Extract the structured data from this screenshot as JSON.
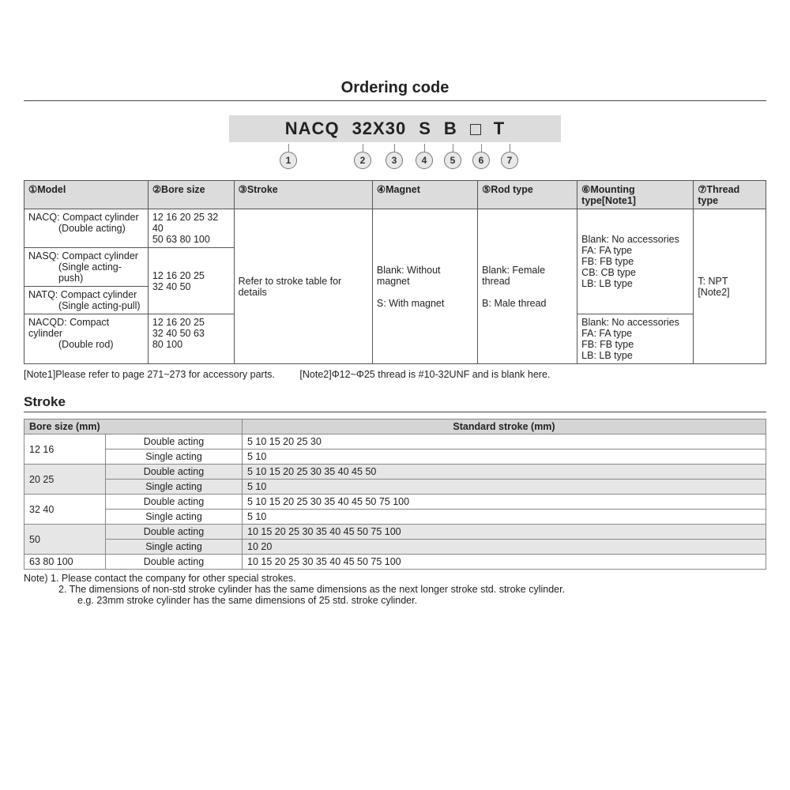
{
  "title": "Ordering code",
  "code_segments": [
    "NACQ",
    "32X30",
    "S",
    "B",
    "□",
    "T"
  ],
  "marker_labels": [
    "1",
    "2",
    "3",
    "4",
    "5",
    "6",
    "7"
  ],
  "main_table": {
    "headers": [
      "①Model",
      "②Bore size",
      "③Stroke",
      "④Magnet",
      "⑤Rod type",
      "⑥Mounting type[Note1]",
      "⑦Thread type"
    ],
    "model": [
      {
        "code": "NACQ:",
        "desc": "Compact cylinder",
        "sub": "(Double acting)"
      },
      {
        "code": "NASQ:",
        "desc": "Compact cylinder",
        "sub": "(Single acting-push)"
      },
      {
        "code": "NATQ:",
        "desc": "Compact cylinder",
        "sub": "(Single acting-pull)"
      },
      {
        "code": "NACQD:",
        "desc": "Compact cylinder",
        "sub": "(Double rod)"
      }
    ],
    "bore": [
      "12 16 20 25 32 40\n50 63 80 100",
      "12 16 20 25\n32 40 50",
      "12 16 20 25\n32 40 50 63\n80 100"
    ],
    "stroke": "Refer to stroke table for details",
    "magnet": "Blank: Without magnet\n\nS: With magnet",
    "rod": "Blank: Female thread\n\nB: Male thread",
    "mounting_a": "Blank: No accessories\nFA: FA type\nFB: FB type\nCB: CB type\nLB: LB type",
    "mounting_b": "Blank: No accessories\nFA: FA type\nFB: FB type\nLB: LB type",
    "thread": "T: NPT [Note2]"
  },
  "note1": "[Note1]Please refer to page 271~273 for accessory parts.",
  "note2": "[Note2]Φ12~Φ25 thread is  #10-32UNF and is blank here.",
  "stroke_section_title": "Stroke",
  "stroke_headers": [
    "Bore size (mm)",
    "Standard stroke (mm)"
  ],
  "stroke_rows": [
    {
      "bore": "12  16",
      "type": "Double acting",
      "strokes": "5  10  15  20  25  30",
      "alt": false
    },
    {
      "bore": "",
      "type": "Single acting",
      "strokes": "5  10",
      "alt": false,
      "merge": true
    },
    {
      "bore": "20  25",
      "type": "Double acting",
      "strokes": "5  10  15  20  25  30  35  40  45  50",
      "alt": true
    },
    {
      "bore": "",
      "type": "Single acting",
      "strokes": "5  10",
      "alt": true,
      "merge": true
    },
    {
      "bore": "32  40",
      "type": "Double acting",
      "strokes": "5  10  15  20  25  30  35  40  45  50  75  100",
      "alt": false
    },
    {
      "bore": "",
      "type": "Single acting",
      "strokes": "5  10",
      "alt": false,
      "merge": true
    },
    {
      "bore": "50",
      "type": "Double acting",
      "strokes": "10  15  20  25  30  35  40  45  50  75  100",
      "alt": true
    },
    {
      "bore": "",
      "type": "Single acting",
      "strokes": "10  20",
      "alt": true,
      "merge": true
    },
    {
      "bore": "63  80  100",
      "type": "Double acting",
      "strokes": "10  15  20  25  30  35  40  45  50  75  100",
      "alt": false
    }
  ],
  "stroke_notes": [
    "Note) 1. Please contact the company for other special strokes.",
    "2. The dimensions of non-std stroke cylinder has the same dimensions as the next longer stroke std. stroke cylinder.",
    "e.g. 23mm stroke cylinder has the same dimensions of 25 std. stroke cylinder."
  ]
}
